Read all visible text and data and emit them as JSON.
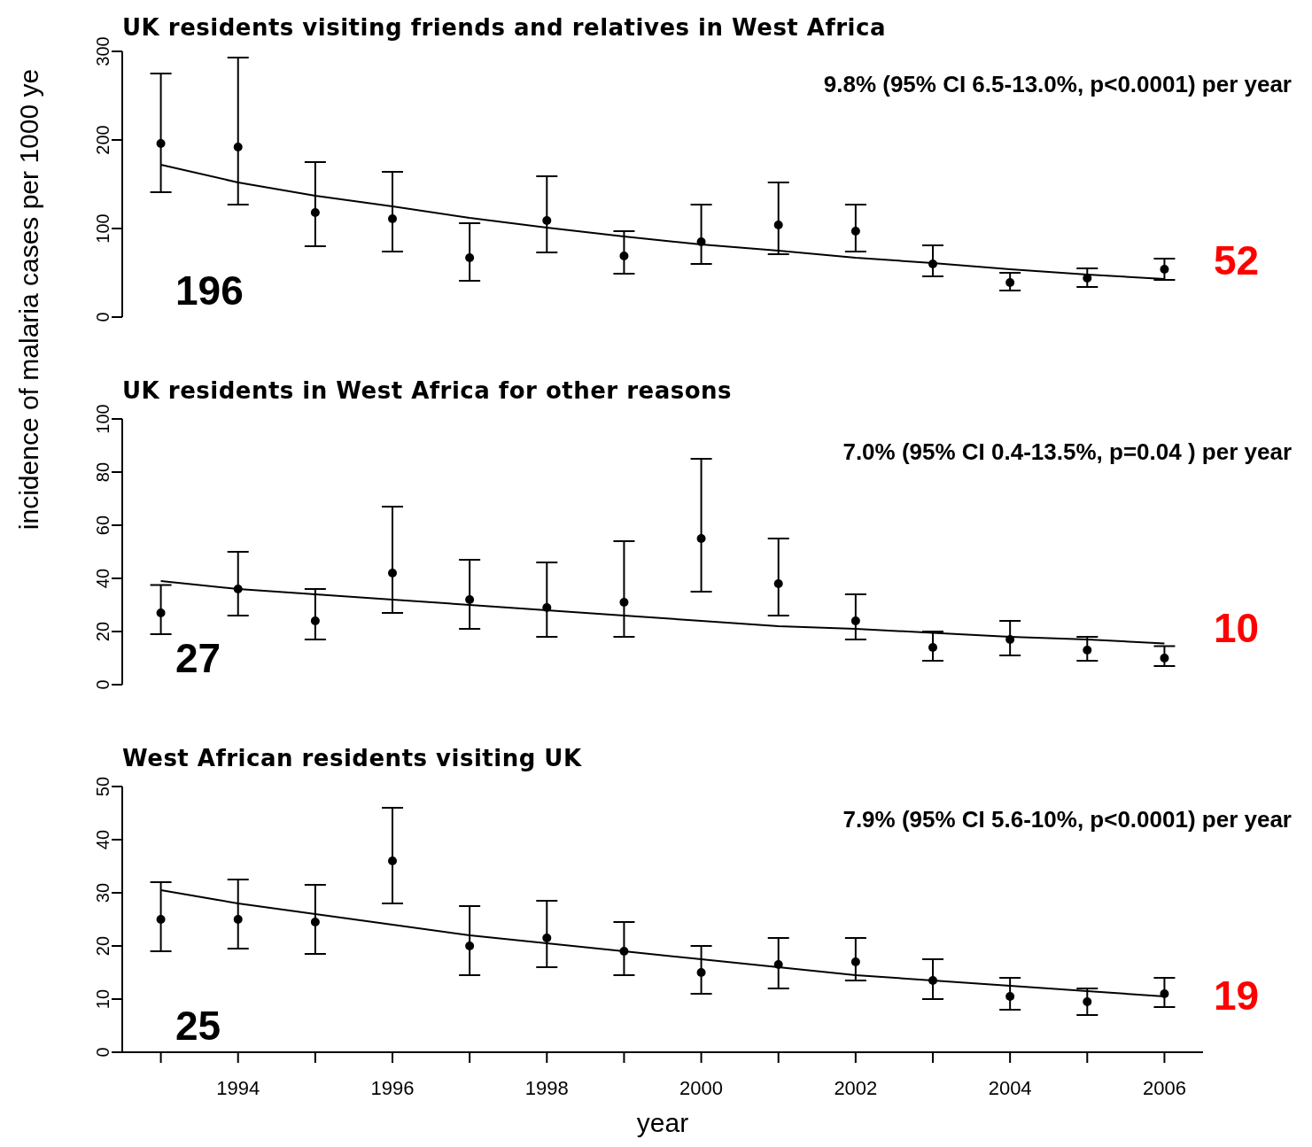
{
  "chart_data": [
    {
      "type": "scatter",
      "title": "UK residents visiting friends and relatives in West Africa",
      "ylabel": "incidence of malaria cases per 1000 ye",
      "x": [
        1993,
        1994,
        1995,
        1996,
        1997,
        1998,
        1999,
        2000,
        2001,
        2002,
        2003,
        2004,
        2005,
        2006
      ],
      "ylim": [
        0,
        300
      ],
      "yticks": [
        0,
        100,
        200,
        300
      ],
      "tick_labels": "y",
      "series": [
        {
          "marker": "circle",
          "color": "#000000",
          "values": [
            196,
            192,
            118,
            111,
            67,
            109,
            69,
            85,
            104,
            97,
            60,
            39,
            44,
            54
          ],
          "errors": [
            [
              141,
              275
            ],
            [
              127,
              293
            ],
            [
              80,
              175
            ],
            [
              74,
              164
            ],
            [
              41,
              106
            ],
            [
              73,
              159
            ],
            [
              49,
              97
            ],
            [
              60,
              127
            ],
            [
              71,
              152
            ],
            [
              74,
              127
            ],
            [
              46,
              81
            ],
            [
              30,
              50
            ],
            [
              34,
              55
            ],
            [
              42,
              66
            ]
          ]
        },
        {
          "type": "line",
          "marker": "none",
          "color": "#000000",
          "values": [
            172,
            152,
            137,
            125,
            112,
            101,
            91,
            82,
            75,
            67,
            61,
            54,
            48,
            43
          ]
        }
      ],
      "annotations": [
        "9.8% (95% CI 6.5-13.0%, p<0.0001) per year",
        "196",
        "52"
      ]
    },
    {
      "type": "scatter",
      "title": "UK residents in West Africa for other reasons",
      "x": [
        1993,
        1994,
        1995,
        1996,
        1997,
        1998,
        1999,
        2000,
        2001,
        2002,
        2003,
        2004,
        2005,
        2006
      ],
      "ylim": [
        0,
        100
      ],
      "yticks": [
        0,
        20,
        40,
        60,
        80,
        100
      ],
      "tick_labels": "y",
      "series": [
        {
          "marker": "circle",
          "color": "#000000",
          "values": [
            27,
            36,
            24,
            42,
            32,
            29,
            31,
            55,
            38,
            24,
            14,
            17,
            13,
            10
          ],
          "errors": [
            [
              19,
              37.5
            ],
            [
              26,
              50
            ],
            [
              17,
              36
            ],
            [
              27,
              67
            ],
            [
              21,
              47
            ],
            [
              18,
              46
            ],
            [
              18,
              54
            ],
            [
              35,
              85
            ],
            [
              26,
              55
            ],
            [
              17,
              34
            ],
            [
              9,
              20
            ],
            [
              11,
              24
            ],
            [
              9,
              18
            ],
            [
              7,
              14.5
            ]
          ]
        },
        {
          "type": "line",
          "marker": "none",
          "color": "#000000",
          "values": [
            39,
            36,
            34,
            32,
            30,
            28,
            26,
            24,
            22,
            21,
            19.5,
            18,
            17,
            15.5
          ]
        }
      ],
      "annotations": [
        "7.0% (95% CI 0.4-13.5%, p=0.04 ) per year",
        "27",
        "10"
      ]
    },
    {
      "type": "scatter",
      "title": "West African residents visiting UK",
      "xlabel": "year",
      "x": [
        1993,
        1994,
        1995,
        1996,
        1997,
        1998,
        1999,
        2000,
        2001,
        2002,
        2003,
        2004,
        2005,
        2006
      ],
      "xlim": [
        1992.5,
        2006.5
      ],
      "xticks": [
        {
          "value": 1993,
          "label": null
        },
        {
          "value": 1994,
          "label": "1994"
        },
        {
          "value": 1995,
          "label": null
        },
        {
          "value": 1996,
          "label": "1996"
        },
        {
          "value": 1997,
          "label": null
        },
        {
          "value": 1998,
          "label": "1998"
        },
        {
          "value": 1999,
          "label": null
        },
        {
          "value": 2000,
          "label": "2000"
        },
        {
          "value": 2001,
          "label": null
        },
        {
          "value": 2002,
          "label": "2002"
        },
        {
          "value": 2003,
          "label": null
        },
        {
          "value": 2004,
          "label": "2004"
        },
        {
          "value": 2005,
          "label": null
        },
        {
          "value": 2006,
          "label": "2006"
        }
      ],
      "ylim": [
        0,
        50
      ],
      "yticks": [
        0,
        10,
        20,
        30,
        40,
        50
      ],
      "series": [
        {
          "marker": "circle",
          "color": "#000000",
          "values": [
            25,
            25,
            24.5,
            36,
            20,
            21.5,
            19,
            15,
            16.5,
            17,
            13.5,
            10.5,
            9.5,
            11
          ],
          "errors": [
            [
              19,
              32
            ],
            [
              19.5,
              32.5
            ],
            [
              18.5,
              31.5
            ],
            [
              28,
              46
            ],
            [
              14.5,
              27.5
            ],
            [
              16,
              28.5
            ],
            [
              14.5,
              24.5
            ],
            [
              11,
              20
            ],
            [
              12,
              21.5
            ],
            [
              13.5,
              21.5
            ],
            [
              10,
              17.5
            ],
            [
              8,
              14
            ],
            [
              7,
              12
            ],
            [
              8.5,
              14
            ]
          ]
        },
        {
          "type": "line",
          "marker": "none",
          "color": "#000000",
          "values": [
            30.5,
            28,
            26,
            24,
            22,
            20.5,
            19,
            17.5,
            16,
            14.5,
            13.5,
            12.5,
            11.5,
            10.5
          ]
        }
      ],
      "annotations": [
        "7.9% (95% CI 5.6-10%, p<0.0001) per year",
        "25",
        "19"
      ]
    }
  ]
}
